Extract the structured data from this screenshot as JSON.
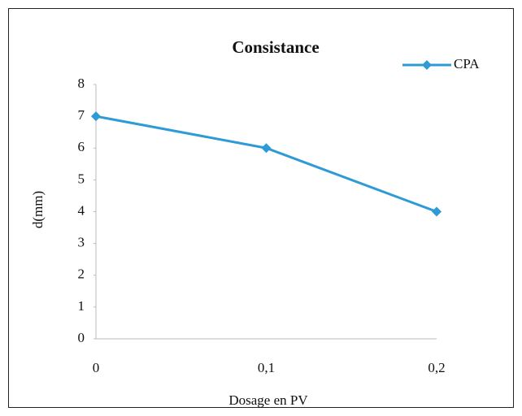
{
  "chart_data": {
    "type": "line",
    "title": "Consistance",
    "x_label": "Dosage en  PV",
    "y_label": "d(mm)",
    "categories": [
      "0",
      "0,1",
      "0,2"
    ],
    "series": [
      {
        "name": "CPA",
        "color": "#2e9ad6",
        "values": [
          7,
          6,
          4
        ]
      }
    ],
    "ylim": [
      0,
      8
    ],
    "yticks": [
      0,
      1,
      2,
      3,
      4,
      5,
      6,
      7,
      8
    ],
    "grid": false,
    "legend": "top-right"
  }
}
